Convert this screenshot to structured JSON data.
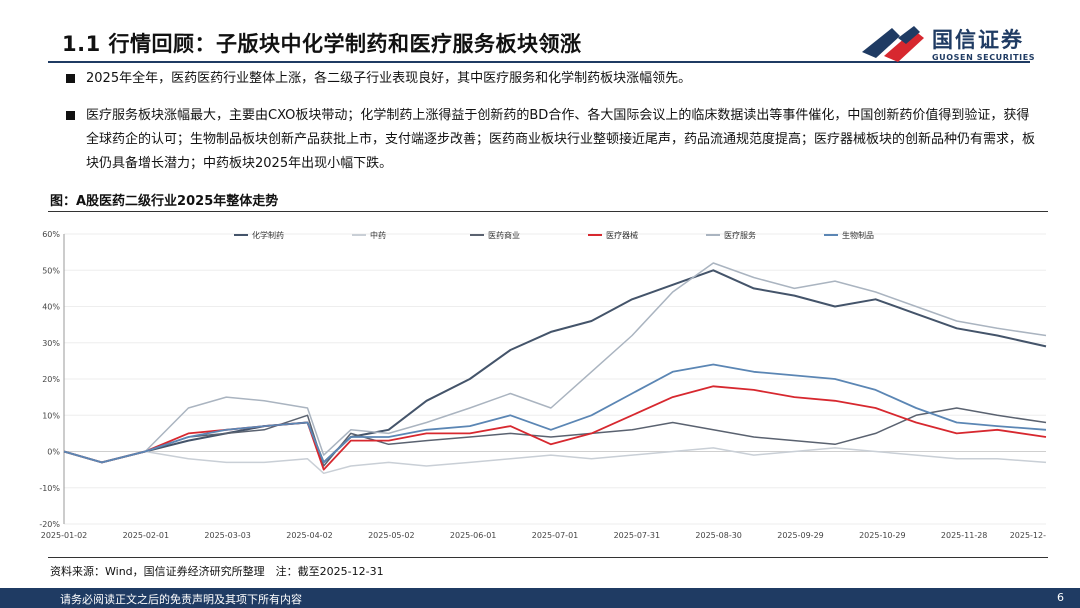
{
  "header": {
    "title": "1.1 行情回顾：子版块中化学制药和医疗服务板块领涨",
    "logo_cn": "国信证券",
    "logo_en": "GUOSEN SECURITIES"
  },
  "bullets": [
    "2025年全年，医药医药行业整体上涨，各二级子行业表现良好，其中医疗服务和化学制药板块涨幅领先。",
    "医疗服务板块涨幅最大，主要由CXO板块带动；化学制药上涨得益于创新药的BD合作、各大国际会议上的临床数据读出等事件催化，中国创新药价值得到验证，获得全球药企的认可；生物制品板块创新产品获批上市，支付端逐步改善；医药商业板块行业整顿接近尾声，药品流通规范度提高；医疗器械板块的创新品种仍有需求，板块仍具备增长潜力；中药板块2025年出现小幅下跌。"
  ],
  "figure_title": "图：A股医药二级行业2025年整体走势",
  "source": "资料来源：Wind，国信证券经济研究所整理　注：截至2025-12-31",
  "footer": {
    "disclaimer": "请务必阅读正文之后的免责声明及其项下所有内容",
    "page": "6"
  },
  "colors": {
    "brand_navy": "#1f3b63",
    "logo_red": "#d7282f"
  },
  "chart_data": {
    "type": "line",
    "y_tick_labels": [
      "60%",
      "50%",
      "40%",
      "30%",
      "20%",
      "10%",
      "0%",
      "-10%",
      "-20%"
    ],
    "ylim": [
      -20,
      60
    ],
    "x_tick_labels": [
      "2025-01-02",
      "2025-02-01",
      "2025-03-03",
      "2025-04-02",
      "2025-05-02",
      "2025-06-01",
      "2025-07-01",
      "2025-07-31",
      "2025-08-30",
      "2025-09-29",
      "2025-10-29",
      "2025-11-28",
      "2025-12-"
    ],
    "x_dates": [
      "2025-01-02",
      "2025-01-16",
      "2025-02-01",
      "2025-02-17",
      "2025-03-03",
      "2025-03-17",
      "2025-04-02",
      "2025-04-08",
      "2025-04-18",
      "2025-05-02",
      "2025-05-16",
      "2025-06-01",
      "2025-06-16",
      "2025-07-01",
      "2025-07-16",
      "2025-07-31",
      "2025-08-15",
      "2025-08-30",
      "2025-09-14",
      "2025-09-29",
      "2025-10-14",
      "2025-10-29",
      "2025-11-13",
      "2025-11-28",
      "2025-12-13",
      "2025-12-31"
    ],
    "legend_position": "top",
    "series": [
      {
        "name": "化学制药",
        "color": "#44546a",
        "width": 2.0,
        "values": [
          0,
          -3,
          0,
          3,
          5,
          7,
          8,
          -3,
          4,
          6,
          14,
          20,
          28,
          33,
          36,
          42,
          46,
          50,
          45,
          43,
          40,
          42,
          38,
          34,
          32,
          29
        ]
      },
      {
        "name": "中药",
        "color": "#c9cfd6",
        "width": 1.5,
        "values": [
          0,
          -3,
          0,
          -2,
          -3,
          -3,
          -2,
          -6,
          -4,
          -3,
          -4,
          -3,
          -2,
          -1,
          -2,
          -1,
          0,
          1,
          -1,
          0,
          1,
          0,
          -1,
          -2,
          -2,
          -3
        ]
      },
      {
        "name": "医药商业",
        "color": "#5a6270",
        "width": 1.5,
        "values": [
          0,
          -3,
          0,
          4,
          5,
          6,
          10,
          -4,
          5,
          2,
          3,
          4,
          5,
          4,
          5,
          6,
          8,
          6,
          4,
          3,
          2,
          5,
          10,
          12,
          10,
          8
        ]
      },
      {
        "name": "医疗器械",
        "color": "#d7282f",
        "width": 1.8,
        "values": [
          0,
          -3,
          0,
          5,
          6,
          7,
          8,
          -5,
          3,
          3,
          5,
          5,
          7,
          2,
          5,
          10,
          15,
          18,
          17,
          15,
          14,
          12,
          8,
          5,
          6,
          4
        ]
      },
      {
        "name": "医疗服务",
        "color": "#aab4c0",
        "width": 1.5,
        "values": [
          0,
          -3,
          0,
          12,
          15,
          14,
          12,
          -1,
          6,
          5,
          8,
          12,
          16,
          12,
          22,
          32,
          44,
          52,
          48,
          45,
          47,
          44,
          40,
          36,
          34,
          32
        ]
      },
      {
        "name": "生物制品",
        "color": "#5b86b4",
        "width": 1.8,
        "values": [
          0,
          -3,
          0,
          4,
          6,
          7,
          8,
          -3,
          4,
          4,
          6,
          7,
          10,
          6,
          10,
          16,
          22,
          24,
          22,
          21,
          20,
          17,
          12,
          8,
          7,
          6
        ]
      }
    ]
  }
}
